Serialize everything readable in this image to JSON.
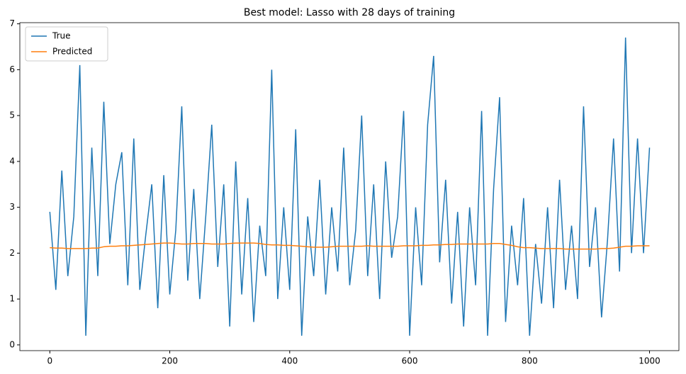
{
  "chart_data": {
    "type": "line",
    "title": "Best model: Lasso with 28 days of training",
    "x": [
      0,
      10,
      20,
      30,
      40,
      50,
      60,
      70,
      80,
      90,
      100,
      110,
      120,
      130,
      140,
      150,
      160,
      170,
      180,
      190,
      200,
      210,
      220,
      230,
      240,
      250,
      260,
      270,
      280,
      290,
      300,
      310,
      320,
      330,
      340,
      350,
      360,
      370,
      380,
      390,
      400,
      410,
      420,
      430,
      440,
      450,
      460,
      470,
      480,
      490,
      500,
      510,
      520,
      530,
      540,
      550,
      560,
      570,
      580,
      590,
      600,
      610,
      620,
      630,
      640,
      650,
      660,
      670,
      680,
      690,
      700,
      710,
      720,
      730,
      740,
      750,
      760,
      770,
      780,
      790,
      800,
      810,
      820,
      830,
      840,
      850,
      860,
      870,
      880,
      890,
      900,
      910,
      920,
      930,
      940,
      950,
      960,
      970,
      980,
      990,
      1000
    ],
    "series": [
      {
        "name": "True",
        "color": "#1f77b4",
        "values": [
          2.9,
          1.2,
          3.8,
          1.5,
          2.8,
          6.1,
          0.2,
          4.3,
          1.5,
          5.3,
          2.2,
          3.5,
          4.2,
          1.3,
          4.5,
          1.2,
          2.4,
          3.5,
          0.8,
          3.7,
          1.1,
          2.5,
          5.2,
          1.4,
          3.4,
          1.0,
          2.8,
          4.8,
          1.7,
          3.5,
          0.4,
          4.0,
          1.1,
          3.2,
          0.5,
          2.6,
          1.5,
          6.0,
          1.0,
          3.0,
          1.2,
          4.7,
          0.2,
          2.8,
          1.5,
          3.6,
          1.1,
          3.0,
          1.6,
          4.3,
          1.3,
          2.5,
          5.0,
          1.5,
          3.5,
          1.0,
          4.0,
          1.9,
          2.8,
          5.1,
          0.2,
          3.0,
          1.3,
          4.8,
          6.3,
          1.8,
          3.6,
          0.9,
          2.9,
          0.4,
          3.0,
          1.3,
          5.1,
          0.2,
          3.4,
          5.4,
          0.5,
          2.6,
          1.3,
          3.2,
          0.2,
          2.2,
          0.9,
          3.0,
          0.8,
          3.6,
          1.2,
          2.6,
          1.0,
          5.2,
          1.7,
          3.0,
          0.6,
          2.3,
          4.5,
          1.6,
          6.7,
          2.0,
          4.5,
          2.0,
          4.3
        ]
      },
      {
        "name": "Predicted",
        "color": "#ff7f0e",
        "values": [
          2.12,
          2.11,
          2.11,
          2.1,
          2.1,
          2.1,
          2.1,
          2.11,
          2.11,
          2.14,
          2.15,
          2.15,
          2.16,
          2.16,
          2.17,
          2.18,
          2.19,
          2.2,
          2.21,
          2.22,
          2.22,
          2.21,
          2.2,
          2.2,
          2.21,
          2.21,
          2.21,
          2.2,
          2.2,
          2.2,
          2.21,
          2.22,
          2.22,
          2.22,
          2.22,
          2.21,
          2.19,
          2.18,
          2.18,
          2.17,
          2.17,
          2.16,
          2.15,
          2.14,
          2.13,
          2.13,
          2.13,
          2.14,
          2.15,
          2.15,
          2.15,
          2.15,
          2.15,
          2.16,
          2.15,
          2.15,
          2.15,
          2.15,
          2.15,
          2.16,
          2.16,
          2.16,
          2.17,
          2.17,
          2.18,
          2.18,
          2.19,
          2.19,
          2.2,
          2.2,
          2.2,
          2.2,
          2.2,
          2.2,
          2.21,
          2.21,
          2.19,
          2.17,
          2.14,
          2.12,
          2.12,
          2.11,
          2.1,
          2.1,
          2.1,
          2.1,
          2.09,
          2.09,
          2.09,
          2.09,
          2.09,
          2.09,
          2.1,
          2.1,
          2.11,
          2.13,
          2.15,
          2.15,
          2.16,
          2.16,
          2.16
        ]
      }
    ],
    "xlim": [
      -50,
      1049
    ],
    "ylim": [
      -0.125,
      7.025
    ],
    "xticks": [
      0,
      200,
      400,
      600,
      800,
      1000
    ],
    "yticks": [
      0,
      1,
      2,
      3,
      4,
      5,
      6,
      7
    ],
    "legend": "upper left"
  }
}
